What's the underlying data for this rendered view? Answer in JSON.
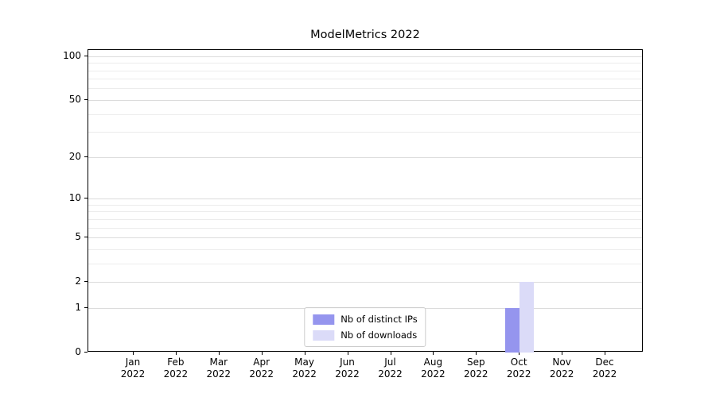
{
  "chart_data": {
    "type": "bar",
    "title": "ModelMetrics 2022",
    "categories": [
      "Jan",
      "Feb",
      "Mar",
      "Apr",
      "May",
      "Jun",
      "Jul",
      "Aug",
      "Sep",
      "Oct",
      "Nov",
      "Dec"
    ],
    "category_year": "2022",
    "series": [
      {
        "name": "Nb of distinct IPs",
        "color": "#9595ee",
        "values": [
          0,
          0,
          0,
          0,
          0,
          0,
          0,
          0,
          0,
          1,
          0,
          0
        ]
      },
      {
        "name": "Nb of downloads",
        "color": "#dbdbf8",
        "values": [
          0,
          0,
          0,
          0,
          0,
          0,
          0,
          0,
          0,
          2,
          0,
          0
        ]
      }
    ],
    "yscale": "symlog",
    "yticks": [
      0,
      1,
      2,
      5,
      10,
      20,
      50,
      100
    ],
    "minor_gridlines": [
      3,
      4,
      6,
      7,
      8,
      9,
      30,
      40,
      60,
      70,
      80,
      90
    ],
    "ylim": [
      0,
      110
    ],
    "grid": "horizontal",
    "legend_position": "lower center",
    "colors": {
      "axis": "#000000",
      "grid_minor": "#ececec",
      "grid_major": "#dcdcdc",
      "legend_border": "#cccccc"
    }
  }
}
